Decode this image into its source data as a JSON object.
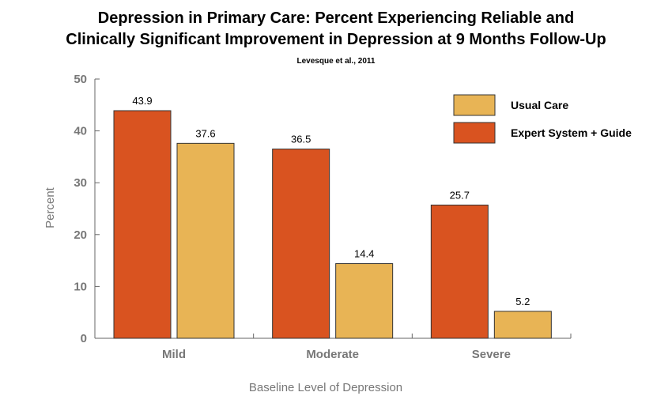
{
  "chart_data": {
    "type": "bar",
    "title_line1": "Depression in Primary Care:  Percent Experiencing Reliable and",
    "title_line2": "Clinically Significant Improvement in Depression at 9 Months Follow-Up",
    "subtitle": "Levesque et al., 2011",
    "xlabel": "Baseline Level of Depression",
    "ylabel": "Percent",
    "ylim": [
      0,
      50
    ],
    "yticks": [
      0,
      10,
      20,
      30,
      40,
      50
    ],
    "grid": false,
    "legend_position": "top-right",
    "categories": [
      "Mild",
      "Moderate",
      "Severe"
    ],
    "series": [
      {
        "name": "Expert System + Guide",
        "color": "#d95320",
        "values": [
          43.9,
          36.5,
          25.7
        ]
      },
      {
        "name": "Usual Care",
        "color": "#e8b455",
        "values": [
          37.6,
          14.4,
          5.2
        ]
      }
    ],
    "legend_order": [
      1,
      0
    ]
  }
}
